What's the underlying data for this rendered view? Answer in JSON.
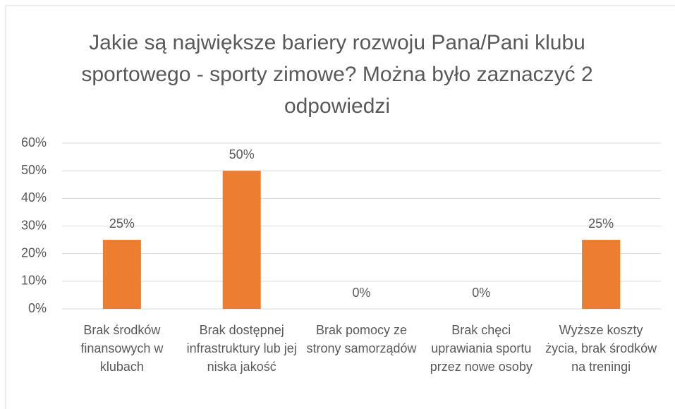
{
  "chart_data": {
    "type": "bar",
    "title": "Jakie są największe bariery rozwoju Pana/Pani klubu sportowego - sporty zimowe? Można było zaznaczyć 2 odpowiedzi",
    "categories": [
      "Brak środków finansowych w klubach",
      "Brak dostępnej infrastruktury lub jej niska jakość",
      "Brak pomocy ze strony samorządów",
      "Brak chęci uprawiania sportu przez nowe osoby",
      "Wyższe koszty życia, brak środków na treningi"
    ],
    "values": [
      25,
      50,
      0,
      0,
      25
    ],
    "value_labels": [
      "25%",
      "50%",
      "0%",
      "0%",
      "25%"
    ],
    "color": "#ed7d31",
    "ylim": [
      0,
      60
    ],
    "yticks": [
      {
        "value": 0,
        "label": "0%"
      },
      {
        "value": 10,
        "label": "10%"
      },
      {
        "value": 20,
        "label": "20%"
      },
      {
        "value": 30,
        "label": "30%"
      },
      {
        "value": 40,
        "label": "40%"
      },
      {
        "value": 50,
        "label": "50%"
      },
      {
        "value": 60,
        "label": "60%"
      }
    ],
    "grid": true
  }
}
